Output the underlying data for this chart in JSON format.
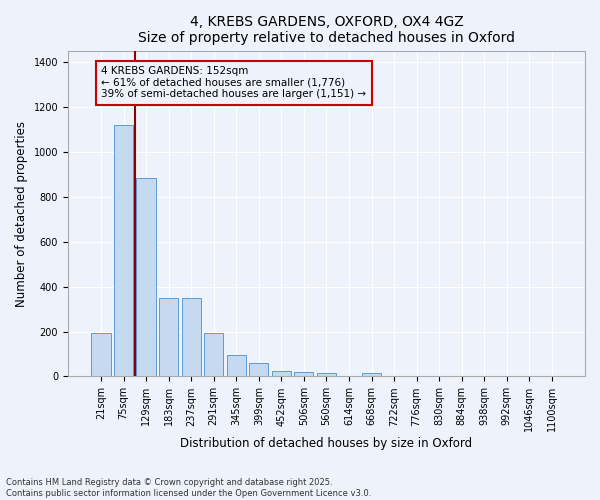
{
  "title1": "4, KREBS GARDENS, OXFORD, OX4 4GZ",
  "title2": "Size of property relative to detached houses in Oxford",
  "xlabel": "Distribution of detached houses by size in Oxford",
  "ylabel": "Number of detached properties",
  "categories": [
    "21sqm",
    "75sqm",
    "129sqm",
    "183sqm",
    "237sqm",
    "291sqm",
    "345sqm",
    "399sqm",
    "452sqm",
    "506sqm",
    "560sqm",
    "614sqm",
    "668sqm",
    "722sqm",
    "776sqm",
    "830sqm",
    "884sqm",
    "938sqm",
    "992sqm",
    "1046sqm",
    "1100sqm"
  ],
  "values": [
    195,
    1120,
    885,
    350,
    350,
    195,
    95,
    60,
    25,
    20,
    17,
    0,
    15,
    0,
    0,
    0,
    0,
    0,
    0,
    0,
    0
  ],
  "bar_color": "#c5d9f0",
  "bar_edge_color": "#5b9bd5",
  "vline_x": 1.5,
  "vline_color": "#8b0000",
  "annotation_text": "4 KREBS GARDENS: 152sqm\n← 61% of detached houses are smaller (1,776)\n39% of semi-detached houses are larger (1,151) →",
  "annotation_box_color": "#cc0000",
  "ylim": [
    0,
    1450
  ],
  "yticks": [
    0,
    200,
    400,
    600,
    800,
    1000,
    1200,
    1400
  ],
  "footer1": "Contains HM Land Registry data © Crown copyright and database right 2025.",
  "footer2": "Contains public sector information licensed under the Open Government Licence v3.0.",
  "bg_color": "#eef3fb",
  "grid_color": "#ffffff",
  "title_fontsize": 10,
  "subtitle_fontsize": 9,
  "tick_fontsize": 7,
  "label_fontsize": 8.5,
  "annot_fontsize": 7.5,
  "footer_fontsize": 6
}
